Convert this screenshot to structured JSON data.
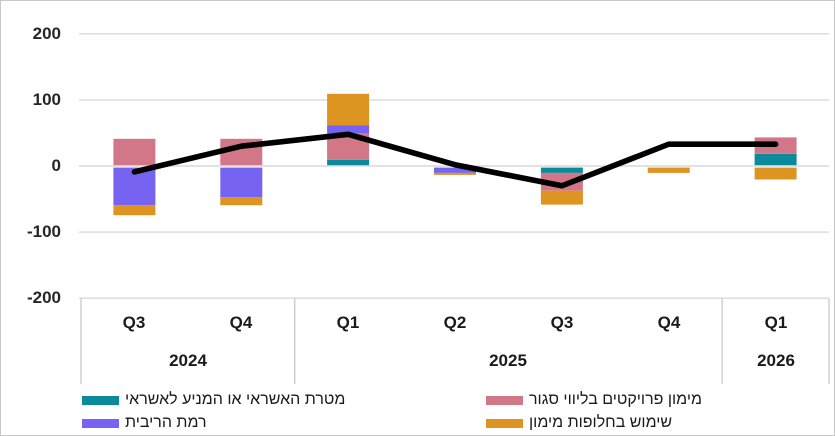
{
  "chart_data": {
    "type": "bar",
    "subtype": "stacked-bars-with-line-overlay",
    "title": "",
    "categories": [
      "Q3",
      "Q4",
      "Q1",
      "Q2",
      "Q3",
      "Q4",
      "Q1"
    ],
    "year_groups": [
      {
        "label": "2024",
        "span": 2
      },
      {
        "label": "2025",
        "span": 4
      },
      {
        "label": "2026",
        "span": 1
      }
    ],
    "ylim": [
      -200,
      200
    ],
    "yticks": [
      200,
      100,
      0,
      -100,
      -200
    ],
    "ytick_labels": [
      "200",
      "100",
      "0",
      "-100",
      "-200"
    ],
    "grid": true,
    "legend_position": "bottom",
    "gridline_color": "#D9D9D9",
    "axis_table_border_color": "#C9C9C9",
    "series": [
      {
        "name": "מטרת האשראי או המניע לאשראי",
        "type": "bar",
        "color": "#0A8A9B",
        "values": [
          0,
          0,
          8,
          0,
          -8,
          0,
          17
        ]
      },
      {
        "name": "מימון פרויקטים בליווי סגור",
        "type": "bar",
        "color": "#D27788",
        "values": [
          40,
          40,
          40,
          0,
          -27,
          0,
          25
        ]
      },
      {
        "name": "רמת הריבית",
        "type": "bar",
        "color": "#7663F2",
        "values": [
          -57,
          -45,
          12,
          -8,
          0,
          0,
          0
        ]
      },
      {
        "name": "שימוש בחלופות מימון",
        "type": "bar",
        "color": "#DE9420",
        "values": [
          -15,
          -12,
          48,
          -3,
          -21,
          -8,
          -18
        ]
      },
      {
        "type": "line",
        "color": "#000000",
        "values": [
          -9,
          30,
          48,
          2,
          -30,
          33,
          33
        ]
      }
    ]
  }
}
